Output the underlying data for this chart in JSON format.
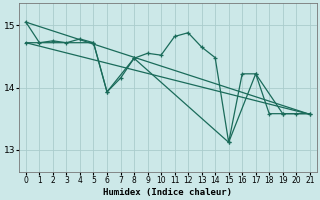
{
  "xlabel": "Humidex (Indice chaleur)",
  "bg_color": "#cce8e8",
  "grid_color": "#aacccc",
  "line_color": "#1a6b5a",
  "xlim": [
    -0.5,
    21.5
  ],
  "ylim": [
    12.65,
    15.35
  ],
  "yticks": [
    13,
    14,
    15
  ],
  "xticks": [
    0,
    1,
    2,
    3,
    4,
    5,
    6,
    7,
    8,
    9,
    10,
    11,
    12,
    13,
    14,
    15,
    16,
    17,
    18,
    19,
    20,
    21
  ],
  "series1": [
    [
      0,
      15.05
    ],
    [
      1,
      14.72
    ],
    [
      2,
      14.75
    ],
    [
      3,
      14.72
    ],
    [
      4,
      14.78
    ],
    [
      5,
      14.72
    ],
    [
      6,
      13.93
    ],
    [
      7,
      14.15
    ],
    [
      8,
      14.47
    ],
    [
      9,
      14.55
    ],
    [
      10,
      14.52
    ],
    [
      11,
      14.82
    ],
    [
      12,
      14.88
    ],
    [
      13,
      14.65
    ],
    [
      14,
      14.48
    ],
    [
      15,
      13.12
    ],
    [
      16,
      14.22
    ],
    [
      17,
      14.22
    ],
    [
      18,
      13.58
    ],
    [
      19,
      13.58
    ],
    [
      20,
      13.58
    ],
    [
      21,
      13.58
    ]
  ],
  "series2": [
    [
      0,
      15.05
    ],
    [
      21,
      13.57
    ]
  ],
  "series3": [
    [
      0,
      14.72
    ],
    [
      21,
      13.57
    ]
  ],
  "series4": [
    [
      0,
      14.72
    ],
    [
      5,
      14.72
    ],
    [
      6,
      13.93
    ],
    [
      8,
      14.47
    ],
    [
      15,
      13.12
    ],
    [
      17,
      14.22
    ],
    [
      19,
      13.58
    ],
    [
      21,
      13.58
    ]
  ]
}
